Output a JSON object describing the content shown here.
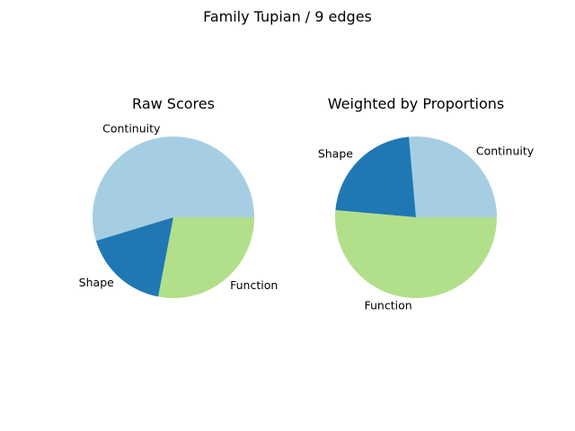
{
  "figure": {
    "title": "Family Tupian / 9 edges"
  },
  "chart_data": [
    {
      "type": "pie",
      "title": "Raw Scores",
      "categories": [
        "Continuity",
        "Shape",
        "Function"
      ],
      "values": [
        0.547,
        0.173,
        0.28
      ],
      "colors": [
        "#a6cee3",
        "#1f78b4",
        "#b2df8a"
      ],
      "start_angle_deg": 0,
      "direction": "counterclockwise"
    },
    {
      "type": "pie",
      "title": "Weighted by Proportions",
      "categories": [
        "Continuity",
        "Shape",
        "Function"
      ],
      "values": [
        0.264,
        0.222,
        0.514
      ],
      "colors": [
        "#a6cee3",
        "#1f78b4",
        "#b2df8a"
      ],
      "start_angle_deg": 0,
      "direction": "counterclockwise"
    }
  ]
}
